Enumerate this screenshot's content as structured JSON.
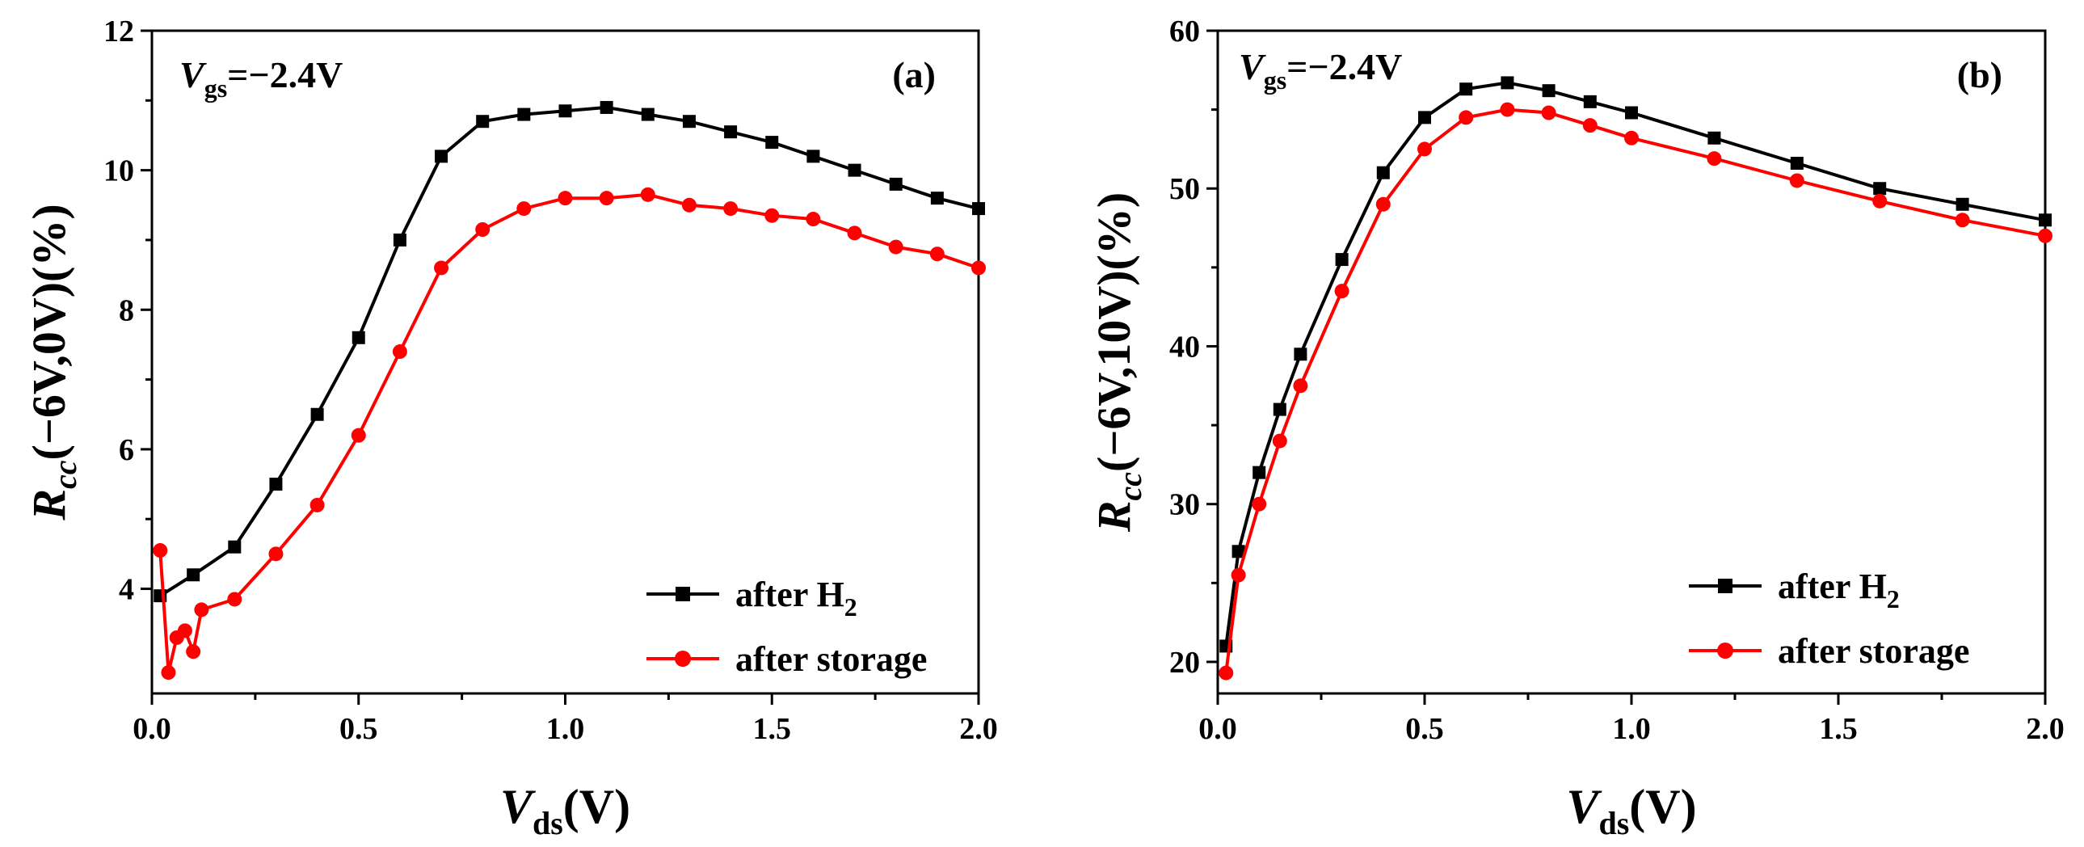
{
  "colors": {
    "after_h2": "#000000",
    "after_storage": "#ff0000"
  },
  "chart_data": [
    {
      "type": "scatter",
      "panel_label": "(a)",
      "annotation": {
        "symbol": "V",
        "subscript": "gs",
        "value": "=−2.4V"
      },
      "xlabel": {
        "symbol": "V",
        "subscript": "ds",
        "suffix": "(V)"
      },
      "ylabel": {
        "symbol": "R",
        "subscript": "cc",
        "suffix": "(−6V,0V)(%)"
      },
      "xlim": [
        0,
        2.0
      ],
      "ylim": [
        2.5,
        12
      ],
      "xticks": [
        "0.0",
        "0.5",
        "1.0",
        "1.5",
        "2.0"
      ],
      "yticks": [
        "4",
        "6",
        "8",
        "10",
        "12"
      ],
      "legend_position": "bottom-right",
      "series": [
        {
          "name": "after H₂",
          "legend_base": "after H",
          "legend_sub": "2",
          "marker": "square",
          "color": "#000000",
          "x": [
            0.02,
            0.1,
            0.2,
            0.3,
            0.4,
            0.5,
            0.6,
            0.7,
            0.8,
            0.9,
            1.0,
            1.1,
            1.2,
            1.3,
            1.4,
            1.5,
            1.6,
            1.7,
            1.8,
            1.9,
            2.0
          ],
          "y": [
            3.9,
            4.2,
            4.6,
            5.5,
            6.5,
            7.6,
            9.0,
            10.2,
            10.7,
            10.8,
            10.85,
            10.9,
            10.8,
            10.7,
            10.55,
            10.4,
            10.2,
            10.0,
            9.8,
            9.6,
            9.45
          ]
        },
        {
          "name": "after storage",
          "legend_base": "after storage",
          "legend_sub": "",
          "marker": "circle",
          "color": "#ff0000",
          "x": [
            0.02,
            0.04,
            0.06,
            0.08,
            0.1,
            0.12,
            0.2,
            0.3,
            0.4,
            0.5,
            0.6,
            0.7,
            0.8,
            0.9,
            1.0,
            1.1,
            1.2,
            1.3,
            1.4,
            1.5,
            1.6,
            1.7,
            1.8,
            1.9,
            2.0
          ],
          "y": [
            4.55,
            2.8,
            3.3,
            3.4,
            3.1,
            3.7,
            3.85,
            4.5,
            5.2,
            6.2,
            7.4,
            8.6,
            9.15,
            9.45,
            9.6,
            9.6,
            9.65,
            9.5,
            9.45,
            9.35,
            9.3,
            9.1,
            8.9,
            8.8,
            8.6
          ]
        }
      ]
    },
    {
      "type": "scatter",
      "panel_label": "(b)",
      "annotation": {
        "symbol": "V",
        "subscript": "gs",
        "value": "=−2.4V"
      },
      "xlabel": {
        "symbol": "V",
        "subscript": "ds",
        "suffix": "(V)"
      },
      "ylabel": {
        "symbol": "R",
        "subscript": "cc",
        "suffix": "(−6V,10V)(%)"
      },
      "xlim": [
        0,
        2.0
      ],
      "ylim": [
        18,
        60
      ],
      "xticks": [
        "0.0",
        "0.5",
        "1.0",
        "1.5",
        "2.0"
      ],
      "yticks": [
        "20",
        "30",
        "40",
        "50",
        "60"
      ],
      "legend_position": "bottom-right",
      "series": [
        {
          "name": "after H₂",
          "legend_base": "after H",
          "legend_sub": "2",
          "marker": "square",
          "color": "#000000",
          "x": [
            0.02,
            0.05,
            0.1,
            0.15,
            0.2,
            0.3,
            0.4,
            0.5,
            0.6,
            0.7,
            0.8,
            0.9,
            1.0,
            1.2,
            1.4,
            1.6,
            1.8,
            2.0
          ],
          "y": [
            21.0,
            27.0,
            32.0,
            36.0,
            39.5,
            45.5,
            51.0,
            54.5,
            56.3,
            56.7,
            56.2,
            55.5,
            54.8,
            53.2,
            51.6,
            50.0,
            49.0,
            48.0
          ]
        },
        {
          "name": "after storage",
          "legend_base": "after storage",
          "legend_sub": "",
          "marker": "circle",
          "color": "#ff0000",
          "x": [
            0.02,
            0.05,
            0.1,
            0.15,
            0.2,
            0.3,
            0.4,
            0.5,
            0.6,
            0.7,
            0.8,
            0.9,
            1.0,
            1.2,
            1.4,
            1.6,
            1.8,
            2.0
          ],
          "y": [
            19.3,
            25.5,
            30.0,
            34.0,
            37.5,
            43.5,
            49.0,
            52.5,
            54.5,
            55.0,
            54.8,
            54.0,
            53.2,
            51.9,
            50.5,
            49.2,
            48.0,
            47.0
          ]
        }
      ]
    }
  ]
}
